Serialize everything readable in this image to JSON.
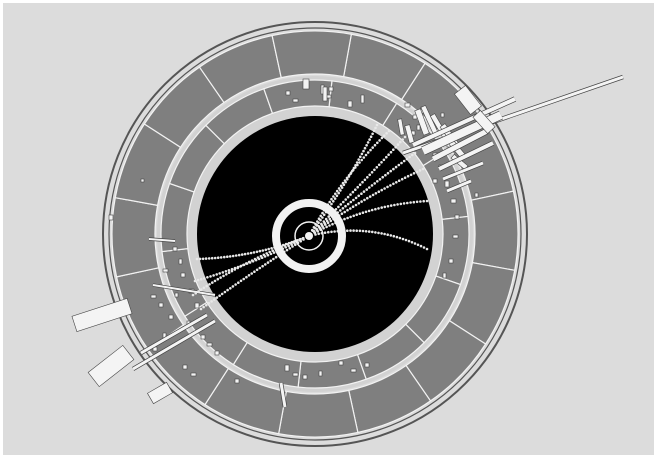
{
  "display": {
    "background_color": "#dcdcdc",
    "outer_ring_color": "#555555",
    "calorimeter_band_color": "#7f7f7f",
    "inner_gap_color": "#d2d2d2",
    "tracker_color": "#000000",
    "track_dot_color": "#e8e8e8",
    "line_color": "#f2f2f2",
    "hit_block_color": "#f4f4f4"
  }
}
